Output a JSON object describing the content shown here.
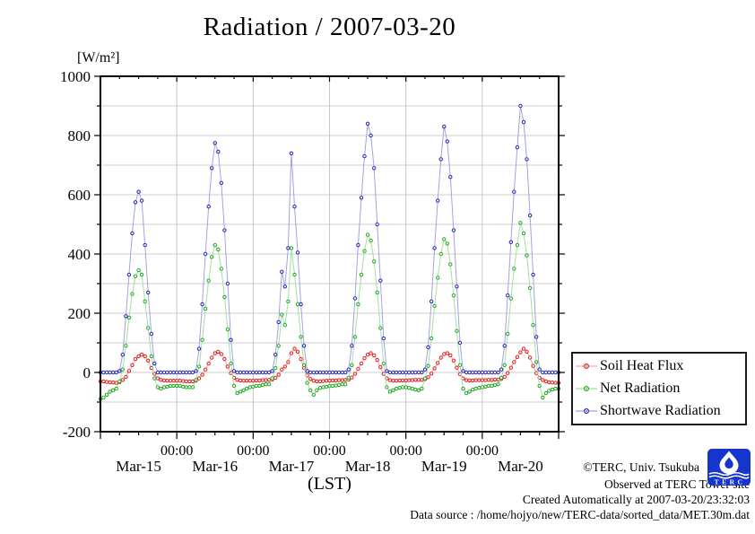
{
  "page": {
    "background": "#ffffff"
  },
  "chart_data": {
    "type": "line",
    "title": "Radiation / 2007-03-20",
    "unit_label": "[W/m²]",
    "xlabel": "(LST)",
    "ylim": [
      -200,
      1000
    ],
    "y_major_tick_step": 200,
    "y_minor_tick_step": 100,
    "x_hours_total": 144,
    "x_minor_tick_hours": 6,
    "x_major_tick_hours": 24,
    "x_major_tick_label": "00:00",
    "day_labels": [
      "Mar-15",
      "Mar-16",
      "Mar-17",
      "Mar-18",
      "Mar-19",
      "Mar-20"
    ],
    "sample_step_hours": 1,
    "grid": true,
    "grid_color": "#bbbbbb",
    "axis_color": "#000000",
    "legend_position": "outside-right-bottom",
    "series": [
      {
        "name": "Soil Heat Flux",
        "marker_color": "#dd2222",
        "line_color": "#f2a6a6",
        "values": [
          -30,
          -30,
          -32,
          -33,
          -34,
          -35,
          -33,
          -25,
          -15,
          5,
          25,
          45,
          55,
          60,
          55,
          40,
          15,
          -5,
          -20,
          -25,
          -27,
          -28,
          -28,
          -28,
          -28,
          -28,
          -29,
          -30,
          -30,
          -30,
          -28,
          -20,
          -8,
          10,
          30,
          50,
          65,
          70,
          62,
          45,
          20,
          -2,
          -18,
          -25,
          -27,
          -28,
          -28,
          -28,
          -28,
          -27,
          -27,
          -26,
          -26,
          -25,
          -24,
          -18,
          -8,
          10,
          20,
          35,
          65,
          80,
          70,
          45,
          15,
          -10,
          -22,
          -28,
          -30,
          -30,
          -29,
          -28,
          -28,
          -27,
          -27,
          -26,
          -26,
          -25,
          -24,
          -17,
          -5,
          12,
          30,
          48,
          60,
          65,
          58,
          42,
          18,
          -5,
          -20,
          -26,
          -28,
          -28,
          -27,
          -27,
          -27,
          -26,
          -26,
          -25,
          -25,
          -25,
          -23,
          -16,
          -4,
          14,
          32,
          50,
          62,
          65,
          58,
          40,
          16,
          -6,
          -20,
          -26,
          -27,
          -27,
          -26,
          -26,
          -26,
          -26,
          -25,
          -25,
          -24,
          -24,
          -22,
          -15,
          -2,
          16,
          35,
          52,
          68,
          80,
          70,
          50,
          22,
          -2,
          -18,
          -26,
          -30,
          -33,
          -34,
          -35,
          -35
        ]
      },
      {
        "name": "Net Radiation",
        "marker_color": "#22aa22",
        "line_color": "#a2dfa2",
        "values": [
          -90,
          -85,
          -75,
          -65,
          -60,
          -55,
          -30,
          10,
          90,
          185,
          265,
          325,
          345,
          330,
          240,
          150,
          55,
          -20,
          -50,
          -55,
          -50,
          -48,
          -45,
          -45,
          -45,
          -45,
          -48,
          -50,
          -50,
          -50,
          -25,
          20,
          110,
          215,
          310,
          390,
          430,
          415,
          350,
          255,
          145,
          30,
          -45,
          -70,
          -65,
          -60,
          -55,
          -50,
          -48,
          -45,
          -45,
          -42,
          -40,
          -40,
          -20,
          15,
          90,
          195,
          160,
          240,
          420,
          330,
          230,
          120,
          25,
          -35,
          -60,
          -75,
          -60,
          -52,
          -50,
          -48,
          -46,
          -45,
          -44,
          -42,
          -40,
          -40,
          -18,
          25,
          120,
          230,
          330,
          410,
          465,
          445,
          375,
          270,
          150,
          30,
          -50,
          -65,
          -60,
          -55,
          -52,
          -50,
          -50,
          -52,
          -55,
          -58,
          -60,
          -55,
          -20,
          22,
          115,
          225,
          320,
          400,
          450,
          435,
          365,
          260,
          140,
          25,
          -55,
          -70,
          -65,
          -58,
          -55,
          -52,
          -50,
          -48,
          -45,
          -45,
          -42,
          -40,
          -18,
          25,
          130,
          250,
          350,
          430,
          505,
          470,
          395,
          285,
          160,
          35,
          -45,
          -85,
          -70,
          -62,
          -58,
          -55,
          -55
        ]
      },
      {
        "name": "Shortwave Radiation",
        "marker_color": "#2525bb",
        "line_color": "#a2a2e2",
        "values": [
          0,
          0,
          0,
          0,
          0,
          0,
          5,
          60,
          190,
          330,
          470,
          575,
          610,
          580,
          430,
          270,
          130,
          30,
          0,
          0,
          0,
          0,
          0,
          0,
          0,
          0,
          0,
          0,
          0,
          0,
          5,
          80,
          230,
          400,
          560,
          690,
          775,
          745,
          640,
          480,
          300,
          110,
          5,
          0,
          0,
          0,
          0,
          0,
          0,
          0,
          0,
          0,
          0,
          0,
          5,
          60,
          170,
          340,
          290,
          420,
          740,
          560,
          405,
          230,
          90,
          5,
          0,
          0,
          0,
          0,
          0,
          0,
          0,
          0,
          0,
          0,
          0,
          0,
          10,
          90,
          250,
          430,
          590,
          730,
          840,
          800,
          690,
          500,
          310,
          115,
          5,
          0,
          0,
          0,
          0,
          0,
          0,
          0,
          0,
          0,
          0,
          0,
          10,
          85,
          240,
          420,
          580,
          720,
          830,
          780,
          660,
          480,
          290,
          100,
          5,
          0,
          0,
          0,
          0,
          0,
          0,
          0,
          0,
          0,
          0,
          0,
          10,
          90,
          260,
          440,
          610,
          760,
          900,
          845,
          720,
          530,
          330,
          120,
          10,
          0,
          0,
          0,
          0,
          0,
          0
        ]
      }
    ]
  },
  "footer": {
    "copyright": "©TERC, Univ. Tsukuba",
    "observed": "Observed at TERC Tower site",
    "created": "Created Automatically at 2007-03-20/23:32:03",
    "datasource": "Data source : /home/hojyo/new/TERC-data/sorted_data/MET.30m.dat"
  },
  "logo": {
    "text": "TERC",
    "color": "#1535cc"
  }
}
